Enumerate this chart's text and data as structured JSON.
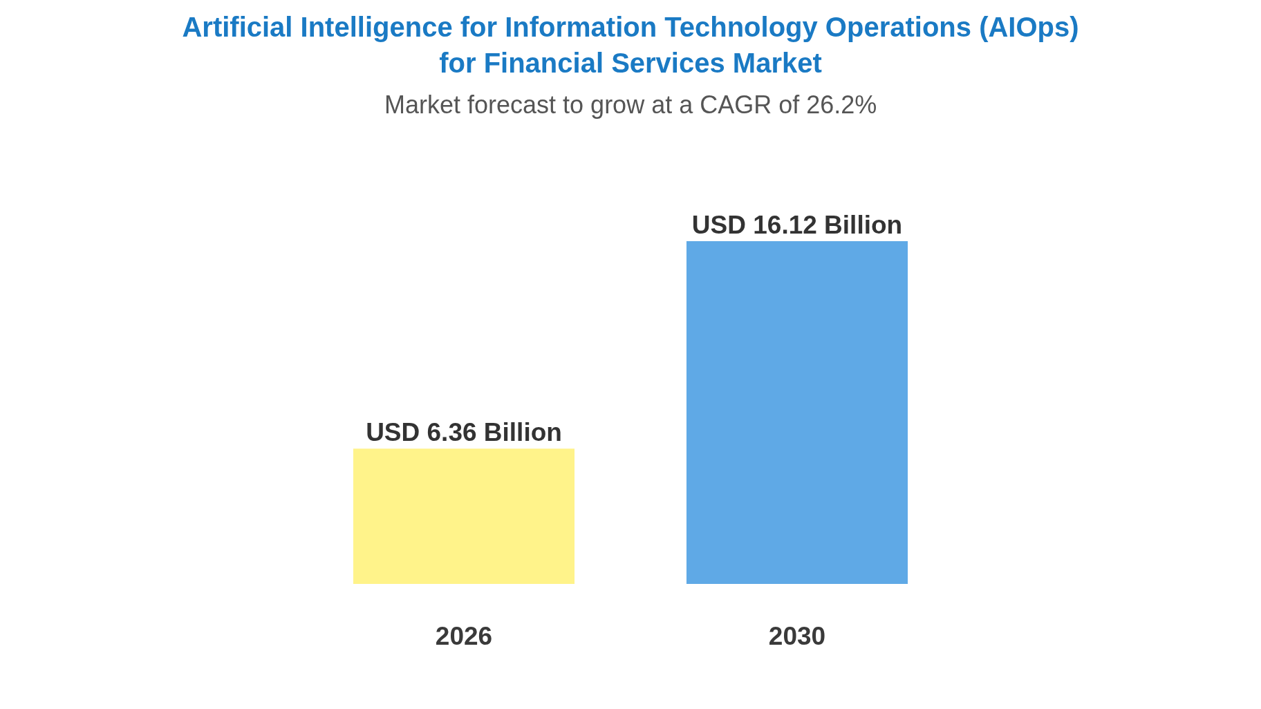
{
  "chart_data": {
    "type": "bar",
    "title": "Artificial Intelligence for Information Technology Operations (AIOps) for Financial Services Market",
    "subtitle": "Market forecast to grow at a CAGR of 26.2%",
    "categories": [
      "2026",
      "2030"
    ],
    "values": [
      6.36,
      16.12
    ],
    "colors": [
      "#fff38a",
      "#5fa9e6"
    ],
    "value_labels": [
      "USD 6.36 Billion",
      "USD 16.12 Billion"
    ]
  }
}
